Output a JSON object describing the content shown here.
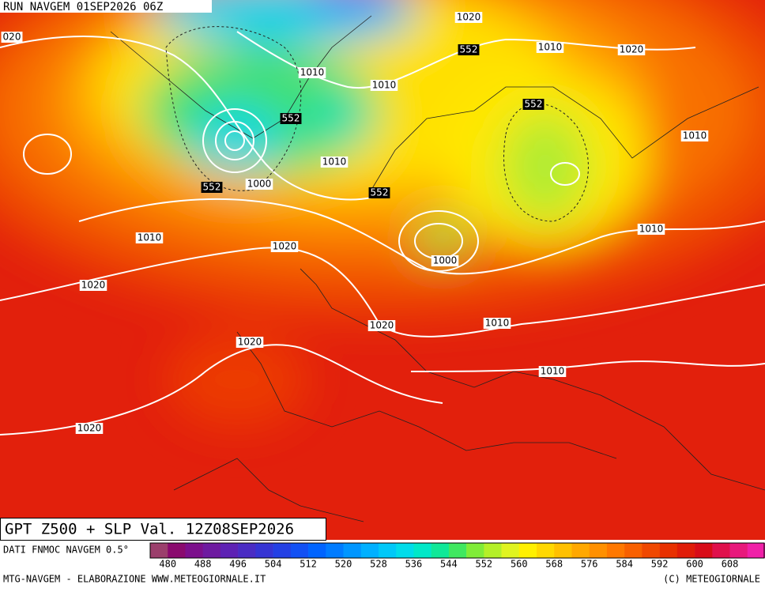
{
  "header": {
    "run": "RUN NAVGEM 01SEP2026 06Z"
  },
  "map": {
    "contour_labels": [
      "020",
      "1020",
      "552",
      "1010",
      "1020",
      "1010",
      "1010",
      "552",
      "552",
      "1010",
      "1010",
      "552",
      "1000",
      "552",
      "1010",
      "1020",
      "1010",
      "1000",
      "1020",
      "1020",
      "1010",
      "1020",
      "1010",
      "1020"
    ]
  },
  "title": "GPT Z500 + SLP Val. 12Z08SEP2026",
  "source": "DATI FNMOC NAVGEM 0.5°",
  "colorbar": {
    "ticks": [
      480,
      488,
      496,
      504,
      512,
      520,
      528,
      536,
      544,
      552,
      560,
      568,
      576,
      584,
      592,
      600,
      608
    ],
    "colors": [
      "#9b3f6c",
      "#8a0a6e",
      "#7c0f8c",
      "#6e1aa0",
      "#5e22b4",
      "#4a2cc4",
      "#3634d4",
      "#2440e4",
      "#1250f4",
      "#0064ff",
      "#007cff",
      "#0096ff",
      "#00b0ff",
      "#00c8f8",
      "#00dcea",
      "#00e8c8",
      "#10e898",
      "#40e860",
      "#80ec38",
      "#b4f028",
      "#e0f420",
      "#fff000",
      "#ffd800",
      "#ffc000",
      "#ffa800",
      "#ff9000",
      "#ff7800",
      "#f86000",
      "#f04800",
      "#e83000",
      "#e01c08",
      "#d80c18",
      "#e0104c",
      "#e8187c",
      "#f020a8"
    ]
  },
  "footer": {
    "left": "MTG-NAVGEM - ELABORAZIONE WWW.METEOGIORNALE.IT",
    "right": "(C) METEOGIORNALE"
  }
}
